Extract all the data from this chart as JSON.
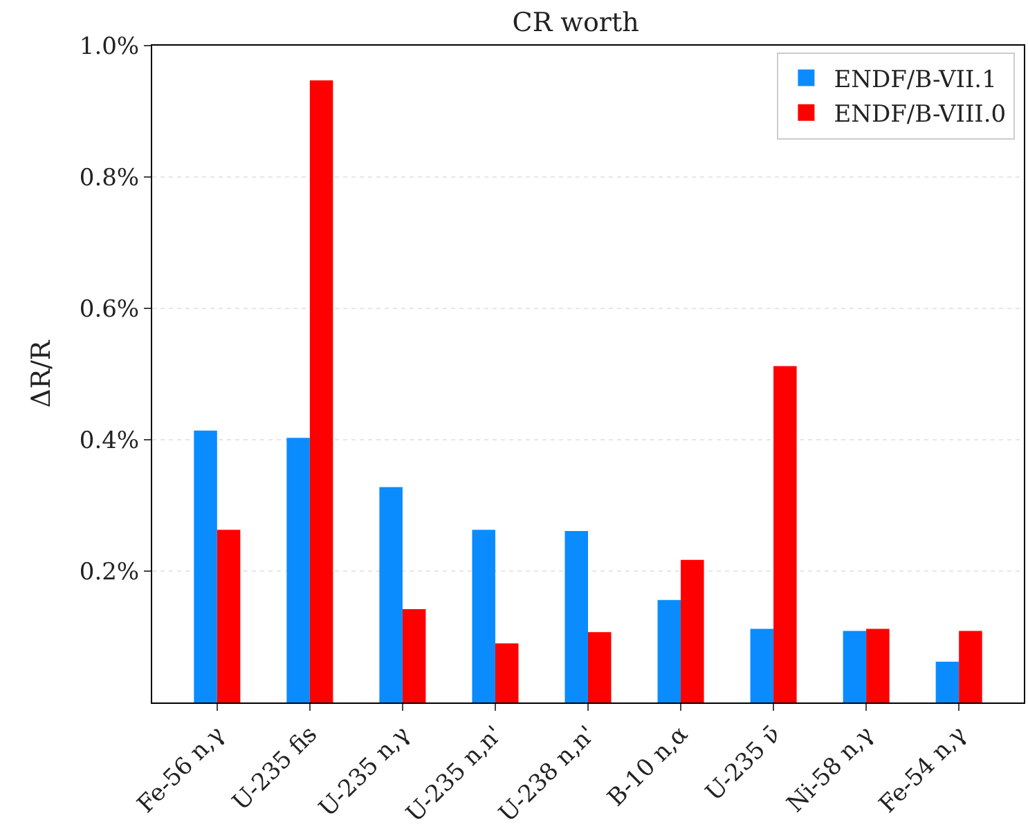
{
  "chart_data": {
    "type": "bar",
    "title": "CR worth",
    "ylabel": "ΔR/R",
    "categories": [
      "Fe-56 n,γ",
      "U-235 fis",
      "U-235 n,γ",
      "U-235 n,n'",
      "U-238 n,n'",
      "B-10 n,α",
      "U-235 ν̄",
      "Ni-58 n,γ",
      "Fe-54 n,γ"
    ],
    "series": [
      {
        "name": "ENDF/B-VII.1",
        "color": "#0a8cff",
        "values": [
          0.414,
          0.403,
          0.328,
          0.263,
          0.261,
          0.156,
          0.112,
          0.109,
          0.062
        ]
      },
      {
        "name": "ENDF/B-VIII.0",
        "color": "#ff0000",
        "values": [
          0.263,
          0.947,
          0.142,
          0.09,
          0.107,
          0.217,
          0.512,
          0.112,
          0.109
        ]
      }
    ],
    "ylim": [
      0,
      1.0
    ],
    "yticks": [
      {
        "value": 0.2,
        "label": "0.2%"
      },
      {
        "value": 0.4,
        "label": "0.4%"
      },
      {
        "value": 0.6,
        "label": "0.6%"
      },
      {
        "value": 0.8,
        "label": "0.8%"
      },
      {
        "value": 1.0,
        "label": "1.0%"
      }
    ],
    "grid": "y",
    "legend": "top right"
  }
}
